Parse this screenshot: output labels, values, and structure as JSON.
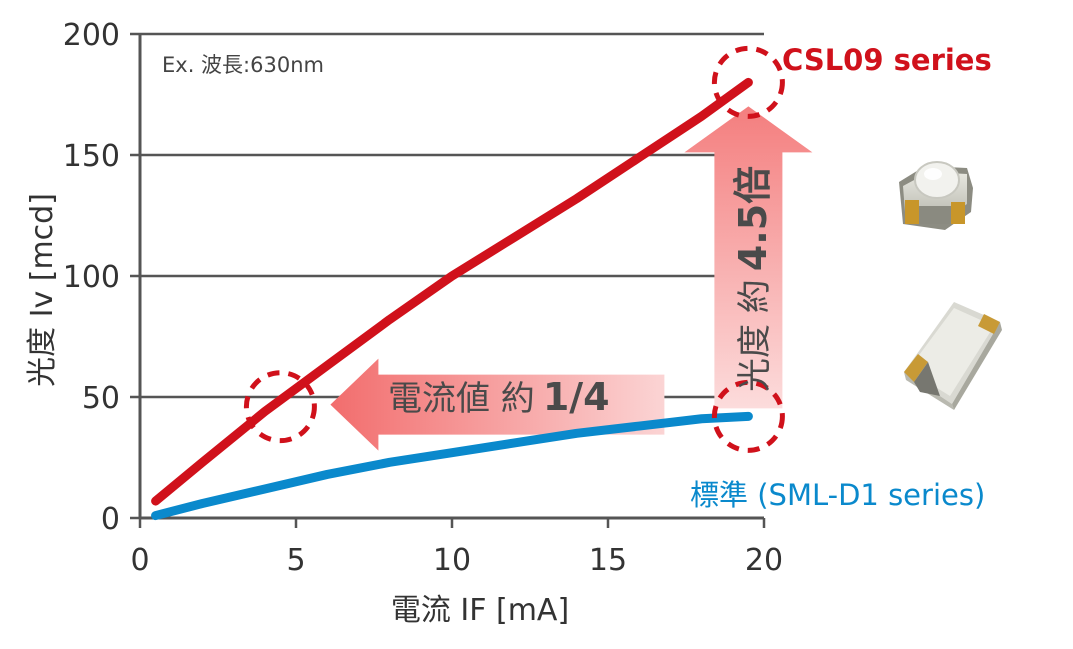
{
  "colors": {
    "csl09": "#d0111b",
    "standard": "#0a89cc",
    "grid": "#555555",
    "arrow": "#f08080",
    "callout_text": "#4a4a4a"
  },
  "chart_data": {
    "type": "line",
    "xlabel": "電流 IF [mA]",
    "ylabel": "光度 Iv [mcd]",
    "xlim": [
      0,
      20
    ],
    "ylim": [
      0,
      200
    ],
    "x_ticks": [
      0,
      5,
      10,
      15,
      20
    ],
    "y_ticks": [
      0,
      50,
      100,
      150,
      200
    ],
    "x_tick_labels": [
      "0",
      "5",
      "10",
      "15",
      "20"
    ],
    "y_tick_labels": [
      "0",
      "50",
      "100",
      "150",
      "200"
    ],
    "grid": "horizontal",
    "annotation": "Ex. 波長:630nm",
    "series": [
      {
        "name": "CSL09 series",
        "color": "#d0111b",
        "x": [
          0.5,
          2,
          4,
          6,
          8,
          10,
          12,
          14,
          16,
          18,
          19.5
        ],
        "y": [
          7,
          23,
          44,
          63,
          82,
          100,
          116,
          132,
          149,
          166,
          180
        ]
      },
      {
        "name": "標準 (SML-D1 series)",
        "color": "#0a89cc",
        "x": [
          0.5,
          2,
          4,
          6,
          8,
          10,
          12,
          14,
          16,
          18,
          19.5
        ],
        "y": [
          1,
          6,
          12,
          18,
          23,
          27,
          31,
          35,
          38,
          41,
          42
        ]
      }
    ],
    "callouts": {
      "current": {
        "text_normal": "電流値 約",
        "text_bold": "1/4"
      },
      "brightness": {
        "text_normal": "光度 約",
        "text_bold": "4.5倍"
      }
    },
    "highlight_points": [
      {
        "x": 4.5,
        "y": 46
      },
      {
        "x": 19.5,
        "y": 180
      },
      {
        "x": 19.5,
        "y": 42
      }
    ]
  }
}
